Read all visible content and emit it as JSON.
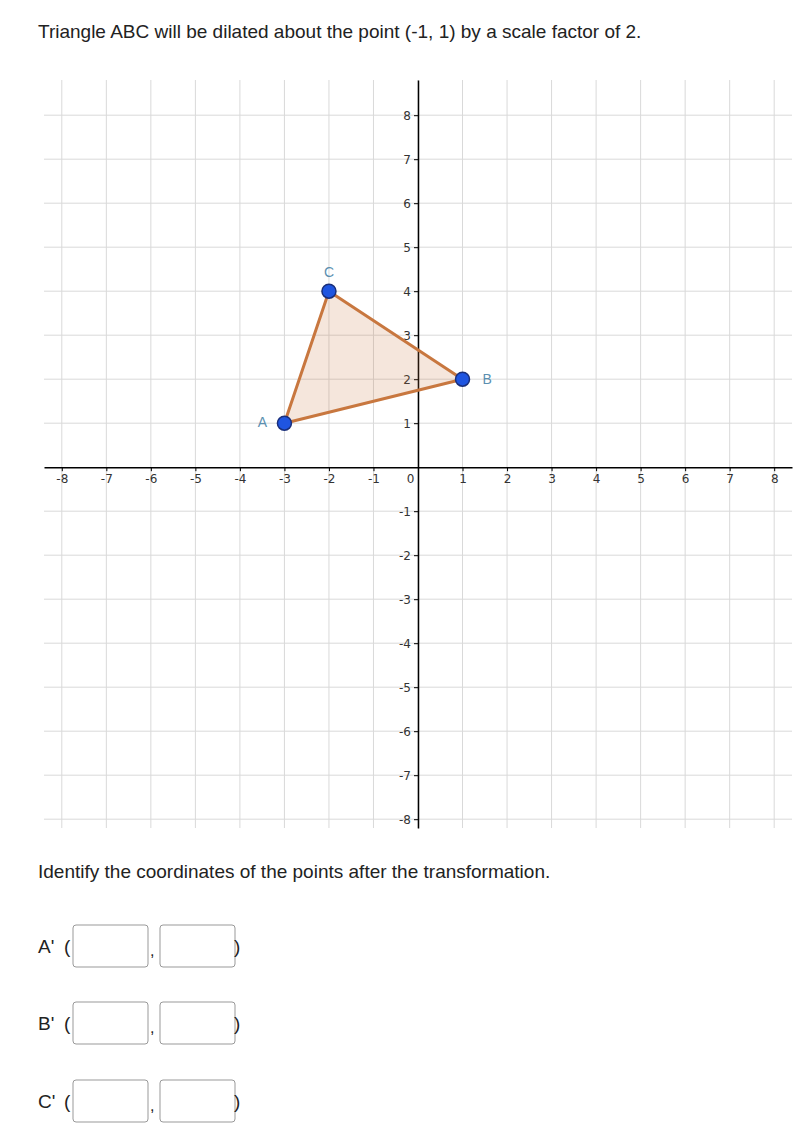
{
  "chart_data": {
    "type": "polygon",
    "title": "Triangle ABC will be dilated about the point (-1, 1) by a scale factor of 2.",
    "x": [
      -3,
      1,
      -2
    ],
    "values": [
      1,
      2,
      4
    ],
    "point_labels": [
      "A",
      "B",
      "C"
    ],
    "color": "#c8773f",
    "marker": "circle",
    "xlim": [
      -8.4,
      8.4
    ],
    "ylim": [
      -8.2,
      8.8
    ],
    "xticks": [
      -8,
      -7,
      -6,
      -5,
      -4,
      -3,
      -2,
      -1,
      0,
      1,
      2,
      3,
      4,
      5,
      6,
      7,
      8
    ],
    "yticks": [
      -8,
      -7,
      -6,
      -5,
      -4,
      -3,
      -2,
      -1,
      1,
      2,
      3,
      4,
      5,
      6,
      7,
      8
    ],
    "grid": true
  },
  "form": {
    "question": "Identify the coordinates of the points after the transformation.",
    "fields": [
      "A'",
      "B'",
      "C'"
    ],
    "punctuation": [
      "(",
      ",",
      ")"
    ]
  }
}
